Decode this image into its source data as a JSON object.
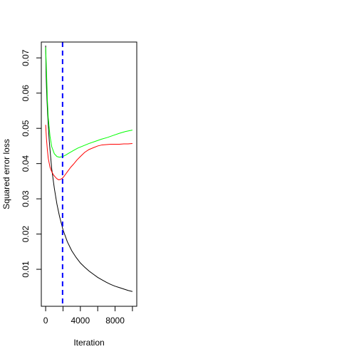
{
  "chart_data": {
    "type": "line",
    "xlabel": "Iteration",
    "ylabel": "Squared error loss",
    "xlim": [
      -500,
      10500
    ],
    "ylim": [
      -0.0005,
      0.0745
    ],
    "x_ticks": [
      0,
      4000,
      8000
    ],
    "x_tick_labels": [
      "0",
      "4000",
      "8000"
    ],
    "y_ticks": [
      0.01,
      0.02,
      0.03,
      0.04,
      0.05,
      0.06,
      0.07
    ],
    "y_tick_labels": [
      "0.01",
      "0.02",
      "0.03",
      "0.04",
      "0.05",
      "0.06",
      "0.07"
    ],
    "grid": false,
    "vline": {
      "x": 1950,
      "color": "#0000ff",
      "style": "dashed"
    },
    "series": [
      {
        "color": "#000000",
        "x": [
          0,
          50,
          100,
          200,
          300,
          400,
          500,
          700,
          1000,
          1300,
          1600,
          2000,
          2500,
          3000,
          3500,
          4000,
          4500,
          5000,
          5500,
          6000,
          6500,
          7000,
          7500,
          8000,
          8500,
          9000,
          9500,
          10000
        ],
        "y": [
          0.0735,
          0.066,
          0.0615,
          0.0555,
          0.051,
          0.047,
          0.044,
          0.0385,
          0.033,
          0.0285,
          0.025,
          0.0212,
          0.0178,
          0.0153,
          0.0134,
          0.0118,
          0.0106,
          0.0095,
          0.0086,
          0.0077,
          0.007,
          0.0063,
          0.0057,
          0.0052,
          0.0048,
          0.0044,
          0.004,
          0.0037
        ]
      },
      {
        "color": "#00ff00",
        "x": [
          0,
          100,
          200,
          300,
          500,
          700,
          1000,
          1300,
          1600,
          1950,
          2300,
          2700,
          3200,
          3700,
          4300,
          5000,
          5700,
          6400,
          7100,
          7800,
          8500,
          9200,
          10000
        ],
        "y": [
          0.073,
          0.066,
          0.058,
          0.053,
          0.0478,
          0.0448,
          0.0428,
          0.042,
          0.0418,
          0.042,
          0.0424,
          0.043,
          0.0437,
          0.0444,
          0.045,
          0.0457,
          0.0463,
          0.0469,
          0.0474,
          0.048,
          0.0486,
          0.0491,
          0.0495
        ]
      },
      {
        "color": "#ff0000",
        "x": [
          0,
          100,
          200,
          300,
          500,
          700,
          900,
          1100,
          1300,
          1500,
          1700,
          1900,
          2100,
          2300,
          2600,
          2900,
          3200,
          3600,
          4000,
          4500,
          5000,
          5500,
          6000,
          6500,
          7000,
          7500,
          8000,
          8500,
          9000,
          9500,
          10000
        ],
        "y": [
          0.051,
          0.0468,
          0.0438,
          0.0415,
          0.039,
          0.0377,
          0.0368,
          0.0362,
          0.0357,
          0.0354,
          0.0355,
          0.0358,
          0.0363,
          0.037,
          0.038,
          0.039,
          0.0398,
          0.041,
          0.042,
          0.0432,
          0.044,
          0.0445,
          0.045,
          0.0453,
          0.0454,
          0.0455,
          0.0455,
          0.0455,
          0.0456,
          0.0456,
          0.0457
        ]
      }
    ]
  }
}
